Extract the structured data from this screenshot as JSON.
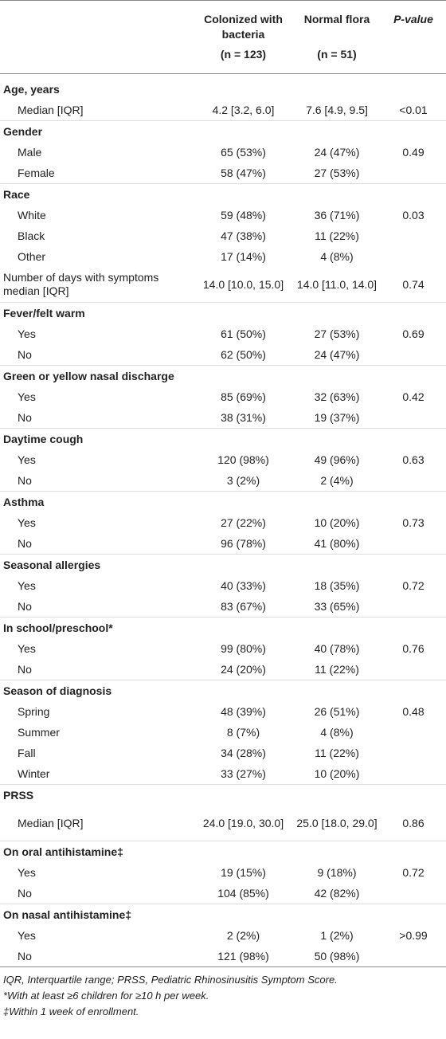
{
  "table": {
    "header": {
      "label_col": null,
      "col1_title": "Colonized with bacteria",
      "col1_n": "(n = 123)",
      "col2_title": "Normal flora",
      "col2_n": "(n = 51)",
      "p_title": "P-value"
    },
    "rows": [
      {
        "group": "Age, years"
      },
      {
        "label": "Median [IQR]",
        "values": [
          "4.2 [3.2, 6.0]",
          "7.6 [4.9, 9.5]"
        ],
        "p": "<0.01"
      },
      {
        "group": "Gender"
      },
      {
        "label": "Male",
        "values": [
          "65 (53%)",
          "24 (47%)"
        ],
        "p": "0.49"
      },
      {
        "label": "Female",
        "values": [
          "58 (47%)",
          "27 (53%)"
        ]
      },
      {
        "group": "Race"
      },
      {
        "label": "White",
        "values": [
          "59 (48%)",
          "36 (71%)"
        ],
        "p": "0.03"
      },
      {
        "label": "Black",
        "values": [
          "47 (38%)",
          "11 (22%)"
        ]
      },
      {
        "label": "Other",
        "values": [
          "17 (14%)",
          "4 (8%)"
        ]
      },
      {
        "plain": "Number of days with symptoms median [IQR]",
        "values": [
          "14.0 [10.0, 15.0]",
          "14.0 [11.0, 14.0]"
        ],
        "p": "0.74"
      },
      {
        "group": "Fever/felt warm"
      },
      {
        "label": "Yes",
        "values": [
          "61 (50%)",
          "27 (53%)"
        ],
        "p": "0.69"
      },
      {
        "label": "No",
        "values": [
          "62 (50%)",
          "24 (47%)"
        ]
      },
      {
        "group": "Green or yellow nasal discharge"
      },
      {
        "label": "Yes",
        "values": [
          "85 (69%)",
          "32 (63%)"
        ],
        "p": "0.42"
      },
      {
        "label": "No",
        "values": [
          "38 (31%)",
          "19 (37%)"
        ]
      },
      {
        "group": "Daytime cough"
      },
      {
        "label": "Yes",
        "values": [
          "120 (98%)",
          "49 (96%)"
        ],
        "p": "0.63"
      },
      {
        "label": "No",
        "values": [
          "3 (2%)",
          "2 (4%)"
        ]
      },
      {
        "group": "Asthma"
      },
      {
        "label": "Yes",
        "values": [
          "27 (22%)",
          "10 (20%)"
        ],
        "p": "0.73"
      },
      {
        "label": "No",
        "values": [
          "96 (78%)",
          "41 (80%)"
        ]
      },
      {
        "group": "Seasonal allergies"
      },
      {
        "label": "Yes",
        "values": [
          "40 (33%)",
          "18 (35%)"
        ],
        "p": "0.72"
      },
      {
        "label": "No",
        "values": [
          "83 (67%)",
          "33 (65%)"
        ]
      },
      {
        "group": "In school/preschool*"
      },
      {
        "label": "Yes",
        "values": [
          "99 (80%)",
          "40 (78%)"
        ],
        "p": "0.76"
      },
      {
        "label": "No",
        "values": [
          "24 (20%)",
          "11 (22%)"
        ]
      },
      {
        "group": "Season of diagnosis"
      },
      {
        "label": "Spring",
        "values": [
          "48 (39%)",
          "26 (51%)"
        ],
        "p": "0.48"
      },
      {
        "label": "Summer",
        "values": [
          "8 (7%)",
          "4 (8%)"
        ]
      },
      {
        "label": "Fall",
        "values": [
          "34 (28%)",
          "11 (22%)"
        ]
      },
      {
        "label": "Winter",
        "values": [
          "33 (27%)",
          "10 (20%)"
        ]
      },
      {
        "group": "PRSS"
      },
      {
        "label": "Median [IQR]",
        "values": [
          "24.0 [19.0, 30.0]",
          "25.0 [18.0, 29.0]"
        ],
        "p": "0.86"
      },
      {
        "group": "On oral antihistamine‡"
      },
      {
        "label": "Yes",
        "values": [
          "19 (15%)",
          "9 (18%)"
        ],
        "p": "0.72"
      },
      {
        "label": "No",
        "values": [
          "104 (85%)",
          "42 (82%)"
        ]
      },
      {
        "group": "On nasal antihistamine‡"
      },
      {
        "label": "Yes",
        "values": [
          "2 (2%)",
          "1 (2%)"
        ],
        "p": ">0.99"
      },
      {
        "label": "No",
        "values": [
          "121 (98%)",
          "50 (98%)"
        ]
      }
    ],
    "footnotes": [
      "IQR, Interquartile range; PRSS, Pediatric Rhinosinusitis Symptom Score.",
      "*With at least ≥6 children for ≥10 h per week.",
      "‡Within 1 week of enrollment."
    ]
  }
}
